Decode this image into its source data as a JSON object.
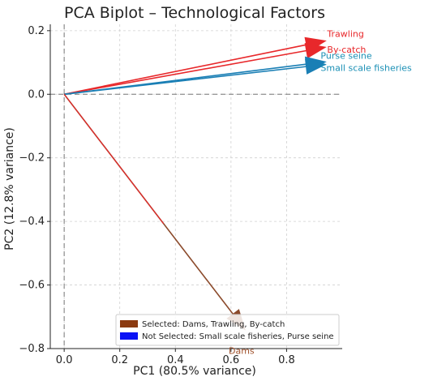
{
  "chart_data": {
    "type": "biplot",
    "title": "PCA Biplot – Technological Factors",
    "xlabel": "PC1 (80.5% variance)",
    "ylabel": "PC2 (12.8% variance)",
    "xlim": [
      -0.05,
      1.0
    ],
    "ylim": [
      -0.8,
      0.22
    ],
    "xticks": [
      0.0,
      0.2,
      0.4,
      0.6,
      0.8
    ],
    "yticks": [
      0.2,
      0.0,
      -0.2,
      -0.4,
      -0.6,
      -0.8
    ],
    "xtick_labels": [
      "0.0",
      "0.2",
      "0.4",
      "0.6",
      "0.8"
    ],
    "ytick_labels": [
      "0.2",
      "0.0",
      "−0.2",
      "−0.4",
      "−0.6",
      "−0.8"
    ],
    "grid": true,
    "reference_lines": {
      "x": 0,
      "y": 0
    },
    "vectors": [
      {
        "name": "Trawling",
        "x": 0.94,
        "y": 0.168,
        "color": "#e8282b",
        "label_color": "#e8282b"
      },
      {
        "name": "By-catch",
        "x": 0.94,
        "y": 0.148,
        "color": "#e8282b",
        "label_color": "#e8282b"
      },
      {
        "name": "Purse seine",
        "x": 0.94,
        "y": 0.102,
        "color": "#1a7fb5",
        "label_color": "#1a8fb5"
      },
      {
        "name": "Small scale fisheries",
        "x": 0.94,
        "y": 0.094,
        "color": "#1a7fb5",
        "label_color": "#1a8fb5"
      },
      {
        "name": "Dams",
        "x": 0.65,
        "y": -0.74,
        "color": "#8b4a2b",
        "label_color": "#a0522d"
      }
    ],
    "legend": {
      "placement": "bottom-right",
      "entries": [
        {
          "label": "Selected: Dams, Trawling, By-catch",
          "color": "#8b3a10"
        },
        {
          "label": "Not Selected: Small scale fisheries, Purse seine",
          "color": "#0a12f5"
        }
      ]
    }
  }
}
